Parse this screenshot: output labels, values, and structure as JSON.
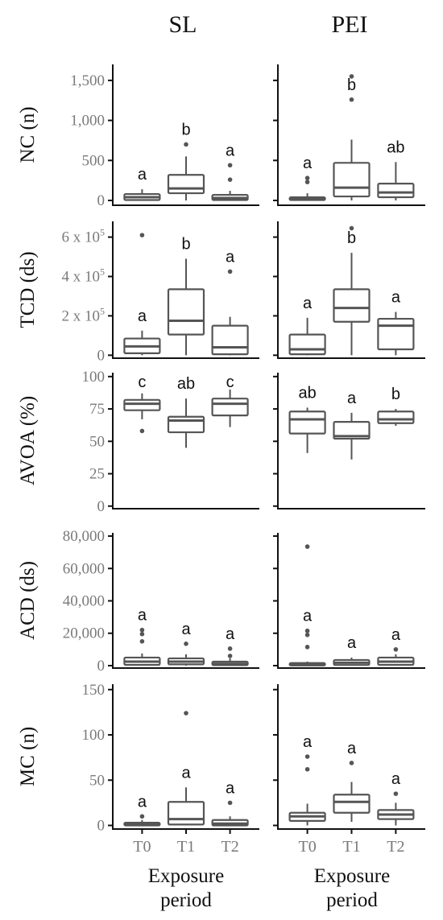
{
  "chart_data": {
    "type": "boxplot",
    "columns": [
      "SL",
      "PEI"
    ],
    "categories": [
      "T0",
      "T1",
      "T2"
    ],
    "xlabel": [
      "Exposure",
      "period"
    ],
    "rows": [
      {
        "ylabel": "NC (n)",
        "ylim": [
          -60,
          1700
        ],
        "ticks": [
          {
            "v": 0,
            "label": "0"
          },
          {
            "v": 500,
            "label": "500"
          },
          {
            "v": 1000,
            "label": "1,000"
          },
          {
            "v": 1500,
            "label": "1,500"
          }
        ],
        "panels": [
          {
            "groups": [
              {
                "q1": 5,
                "median": 40,
                "q3": 80,
                "low": 0,
                "high": 140,
                "outliers": [],
                "letter": "a"
              },
              {
                "q1": 90,
                "median": 150,
                "q3": 320,
                "low": 0,
                "high": 550,
                "outliers": [
                  700
                ],
                "letter": "b"
              },
              {
                "q1": 5,
                "median": 30,
                "q3": 70,
                "low": 0,
                "high": 120,
                "outliers": [
                  260,
                  440
                ],
                "letter": "a"
              }
            ]
          },
          {
            "groups": [
              {
                "q1": 5,
                "median": 20,
                "q3": 40,
                "low": 0,
                "high": 90,
                "outliers": [
                  230,
                  280
                ],
                "letter": "a"
              },
              {
                "q1": 50,
                "median": 160,
                "q3": 470,
                "low": 0,
                "high": 760,
                "outliers": [
                  1260,
                  1550
                ],
                "letter": "b"
              },
              {
                "q1": 40,
                "median": 100,
                "q3": 210,
                "low": 0,
                "high": 480,
                "outliers": [],
                "letter": "ab"
              }
            ]
          }
        ]
      },
      {
        "ylabel": "TCD (ds)",
        "ylim": [
          -15000,
          680000
        ],
        "ticks": [
          {
            "v": 0,
            "label": "0"
          },
          {
            "v": 200000,
            "label": "2 x 10",
            "sup": "5"
          },
          {
            "v": 400000,
            "label": "4 x 10",
            "sup": "5"
          },
          {
            "v": 600000,
            "label": "6 x 10",
            "sup": "5"
          }
        ],
        "panels": [
          {
            "groups": [
              {
                "q1": 10000,
                "median": 45000,
                "q3": 85000,
                "low": 0,
                "high": 125000,
                "outliers": [
                  610000
                ],
                "letter": "a"
              },
              {
                "q1": 105000,
                "median": 175000,
                "q3": 335000,
                "low": 0,
                "high": 490000,
                "outliers": [],
                "letter": "b"
              },
              {
                "q1": 5000,
                "median": 40000,
                "q3": 150000,
                "low": 0,
                "high": 195000,
                "outliers": [
                  425000
                ],
                "letter": "a"
              }
            ]
          },
          {
            "groups": [
              {
                "q1": 5000,
                "median": 30000,
                "q3": 105000,
                "low": 0,
                "high": 190000,
                "outliers": [],
                "letter": "a"
              },
              {
                "q1": 170000,
                "median": 240000,
                "q3": 335000,
                "low": 0,
                "high": 520000,
                "outliers": [
                  645000
                ],
                "letter": "b"
              },
              {
                "q1": 30000,
                "median": 150000,
                "q3": 185000,
                "low": 0,
                "high": 220000,
                "outliers": [],
                "letter": "a"
              }
            ]
          }
        ]
      },
      {
        "ylabel": "AVOA (%)",
        "ylim": [
          -2,
          103
        ],
        "ticks": [
          {
            "v": 0,
            "label": "0"
          },
          {
            "v": 25,
            "label": "25"
          },
          {
            "v": 50,
            "label": "50"
          },
          {
            "v": 75,
            "label": "75"
          },
          {
            "v": 100,
            "label": "100"
          }
        ],
        "panels": [
          {
            "groups": [
              {
                "q1": 74,
                "median": 79,
                "q3": 82,
                "low": 67,
                "high": 87,
                "outliers": [
                  58
                ],
                "letter": "c"
              },
              {
                "q1": 57,
                "median": 66,
                "q3": 69,
                "low": 45,
                "high": 83,
                "outliers": [],
                "letter": "ab"
              },
              {
                "q1": 70,
                "median": 79,
                "q3": 83,
                "low": 61,
                "high": 90,
                "outliers": [],
                "letter": "c"
              }
            ]
          },
          {
            "groups": [
              {
                "q1": 56,
                "median": 67,
                "q3": 73,
                "low": 41,
                "high": 76,
                "outliers": [],
                "letter": "ab"
              },
              {
                "q1": 52,
                "median": 54,
                "q3": 65,
                "low": 36,
                "high": 72,
                "outliers": [],
                "letter": "a"
              },
              {
                "q1": 64,
                "median": 67,
                "q3": 73,
                "low": 62,
                "high": 75,
                "outliers": [],
                "letter": "b"
              }
            ]
          }
        ]
      },
      {
        "ylabel": "ACD (ds)",
        "ylim": [
          -1500,
          82000
        ],
        "ticks": [
          {
            "v": 0,
            "label": "0"
          },
          {
            "v": 20000,
            "label": "20,000"
          },
          {
            "v": 40000,
            "label": "40,000"
          },
          {
            "v": 60000,
            "label": "60,000"
          },
          {
            "v": 80000,
            "label": "80,000"
          }
        ],
        "panels": [
          {
            "groups": [
              {
                "q1": 500,
                "median": 2500,
                "q3": 5000,
                "low": 0,
                "high": 7500,
                "outliers": [
                  15000,
                  19500,
                  22000
                ],
                "letter": "a"
              },
              {
                "q1": 800,
                "median": 2500,
                "q3": 4500,
                "low": 0,
                "high": 7000,
                "outliers": [
                  13500
                ],
                "letter": "a"
              },
              {
                "q1": 300,
                "median": 1200,
                "q3": 2500,
                "low": 0,
                "high": 4500,
                "outliers": [
                  6000,
                  10500
                ],
                "letter": "a"
              }
            ]
          },
          {
            "groups": [
              {
                "q1": 100,
                "median": 500,
                "q3": 1200,
                "low": 0,
                "high": 2500,
                "outliers": [
                  11500,
                  19000,
                  21500,
                  73500
                ],
                "letter": "a"
              },
              {
                "q1": 400,
                "median": 1800,
                "q3": 3500,
                "low": 0,
                "high": 5000,
                "outliers": [],
                "letter": "a"
              },
              {
                "q1": 500,
                "median": 2500,
                "q3": 5000,
                "low": 0,
                "high": 7000,
                "outliers": [
                  10000
                ],
                "letter": "a"
              }
            ]
          }
        ]
      },
      {
        "ylabel": "MC (n)",
        "ylim": [
          -4,
          156
        ],
        "ticks": [
          {
            "v": 0,
            "label": "0"
          },
          {
            "v": 50,
            "label": "50"
          },
          {
            "v": 100,
            "label": "100"
          },
          {
            "v": 150,
            "label": "150"
          }
        ],
        "panels": [
          {
            "groups": [
              {
                "q1": 0,
                "median": 1,
                "q3": 3,
                "low": 0,
                "high": 6,
                "outliers": [
                  10
                ],
                "letter": "a"
              },
              {
                "q1": 1,
                "median": 7,
                "q3": 26,
                "low": 0,
                "high": 42,
                "outliers": [
                  124
                ],
                "letter": "a"
              },
              {
                "q1": 0,
                "median": 2,
                "q3": 6,
                "low": 0,
                "high": 10,
                "outliers": [
                  25
                ],
                "letter": "a"
              }
            ]
          },
          {
            "groups": [
              {
                "q1": 5,
                "median": 10,
                "q3": 14,
                "low": 0,
                "high": 24,
                "outliers": [
                  62,
                  76
                ],
                "letter": "a"
              },
              {
                "q1": 14,
                "median": 26,
                "q3": 34,
                "low": 4,
                "high": 48,
                "outliers": [
                  69
                ],
                "letter": "a"
              },
              {
                "q1": 7,
                "median": 12,
                "q3": 17,
                "low": 0,
                "high": 25,
                "outliers": [
                  35
                ],
                "letter": "a"
              }
            ]
          }
        ]
      }
    ]
  }
}
